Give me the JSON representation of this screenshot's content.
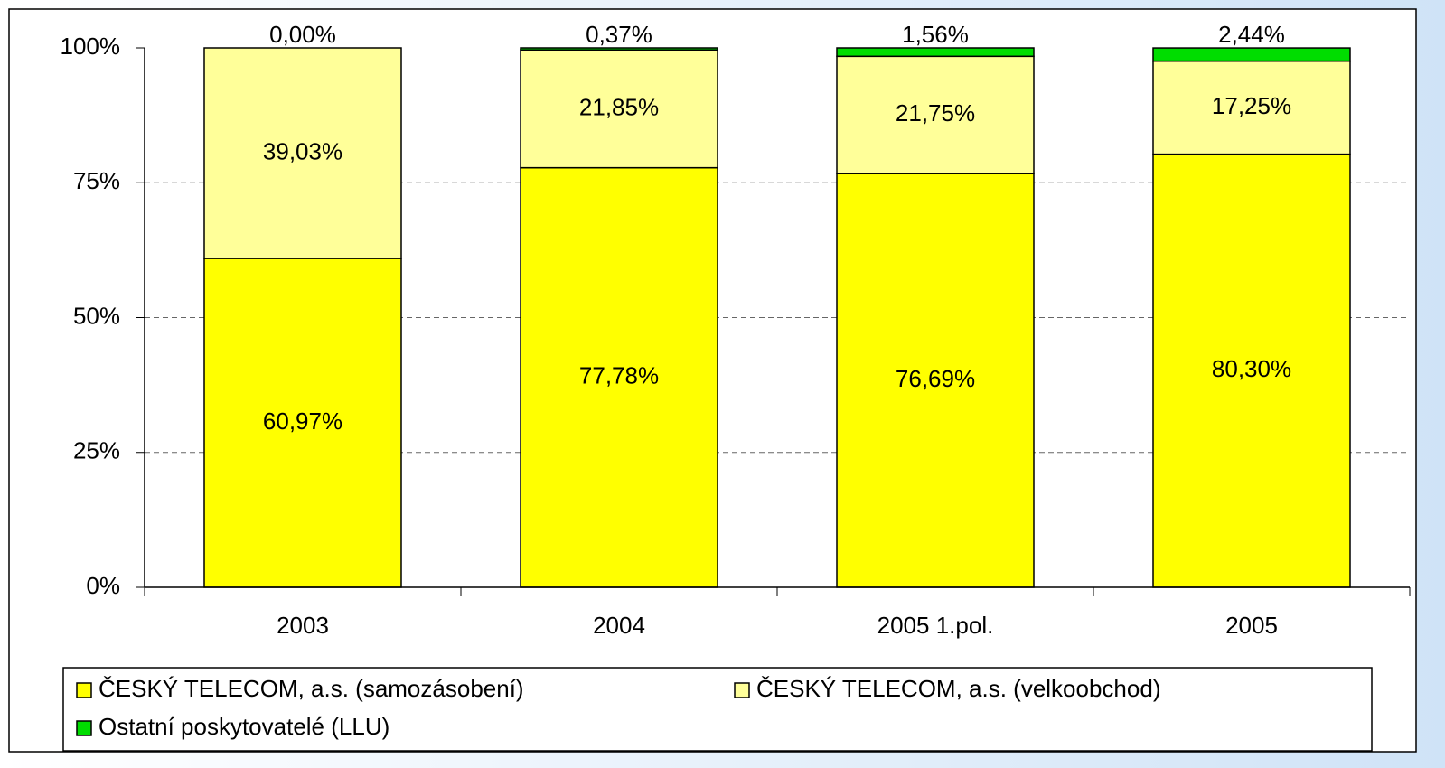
{
  "chart_data": {
    "type": "stacked_bar",
    "categories": [
      "2003",
      "2004",
      "2005 1.pol.",
      "2005"
    ],
    "series": [
      {
        "name": "ČESKÝ TELECOM, a.s. (samozásobení)",
        "color": "#ffff00",
        "values": [
          60.97,
          77.78,
          76.69,
          80.3
        ],
        "value_labels": [
          "60,97%",
          "77,78%",
          "76,69%",
          "80,30%"
        ]
      },
      {
        "name": "ČESKÝ TELECOM, a.s. (velkoobchod)",
        "color": "#ffff99",
        "values": [
          39.03,
          21.85,
          21.75,
          17.25
        ],
        "value_labels": [
          "39,03%",
          "21,85%",
          "21,75%",
          "17,25%"
        ]
      },
      {
        "name": "Ostatní poskytovatelé (LLU)",
        "color": "#00dd00",
        "values": [
          0.0,
          0.37,
          1.56,
          2.44
        ],
        "value_labels": [
          "0,00%",
          "0,37%",
          "1,56%",
          "2,44%"
        ]
      }
    ],
    "ylim": [
      0,
      100
    ],
    "yticks": [
      {
        "value": 0,
        "label": "0%"
      },
      {
        "value": 25,
        "label": "25%"
      },
      {
        "value": 50,
        "label": "50%"
      },
      {
        "value": 75,
        "label": "75%"
      },
      {
        "value": 100,
        "label": "100%"
      }
    ],
    "grid": true
  }
}
